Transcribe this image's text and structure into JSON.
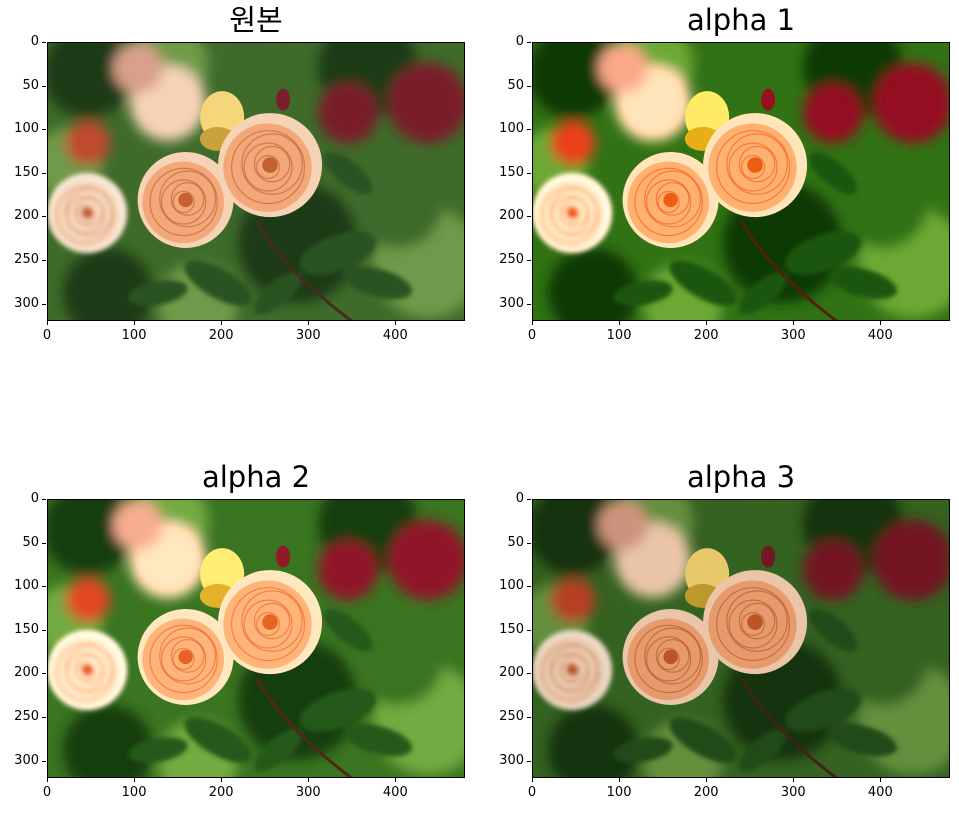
{
  "panels": [
    {
      "title": "원본",
      "filter": "none"
    },
    {
      "title": "alpha 1",
      "filter": "bright"
    },
    {
      "title": "alpha 2",
      "filter": "brighter"
    },
    {
      "title": "alpha 3",
      "filter": "dark"
    }
  ],
  "axes": {
    "y_ticks": [
      "0",
      "50",
      "100",
      "150",
      "200",
      "250",
      "300"
    ],
    "x_ticks": [
      "0",
      "100",
      "200",
      "300",
      "400"
    ],
    "y_values": [
      0,
      50,
      100,
      150,
      200,
      250,
      300
    ],
    "x_values": [
      0,
      100,
      200,
      300,
      400
    ],
    "x_range": [
      0,
      480
    ],
    "y_range": [
      0,
      320
    ]
  },
  "image": {
    "subject": "orange-roses-photo",
    "colors": {
      "foliage_dark": "#1f3a17",
      "foliage_mid": "#3e6b2a",
      "foliage_light": "#6f9a4a",
      "rose_orange": "#f2a070",
      "rose_light": "#f7d3b5",
      "bud_red": "#7a1f2a"
    }
  }
}
